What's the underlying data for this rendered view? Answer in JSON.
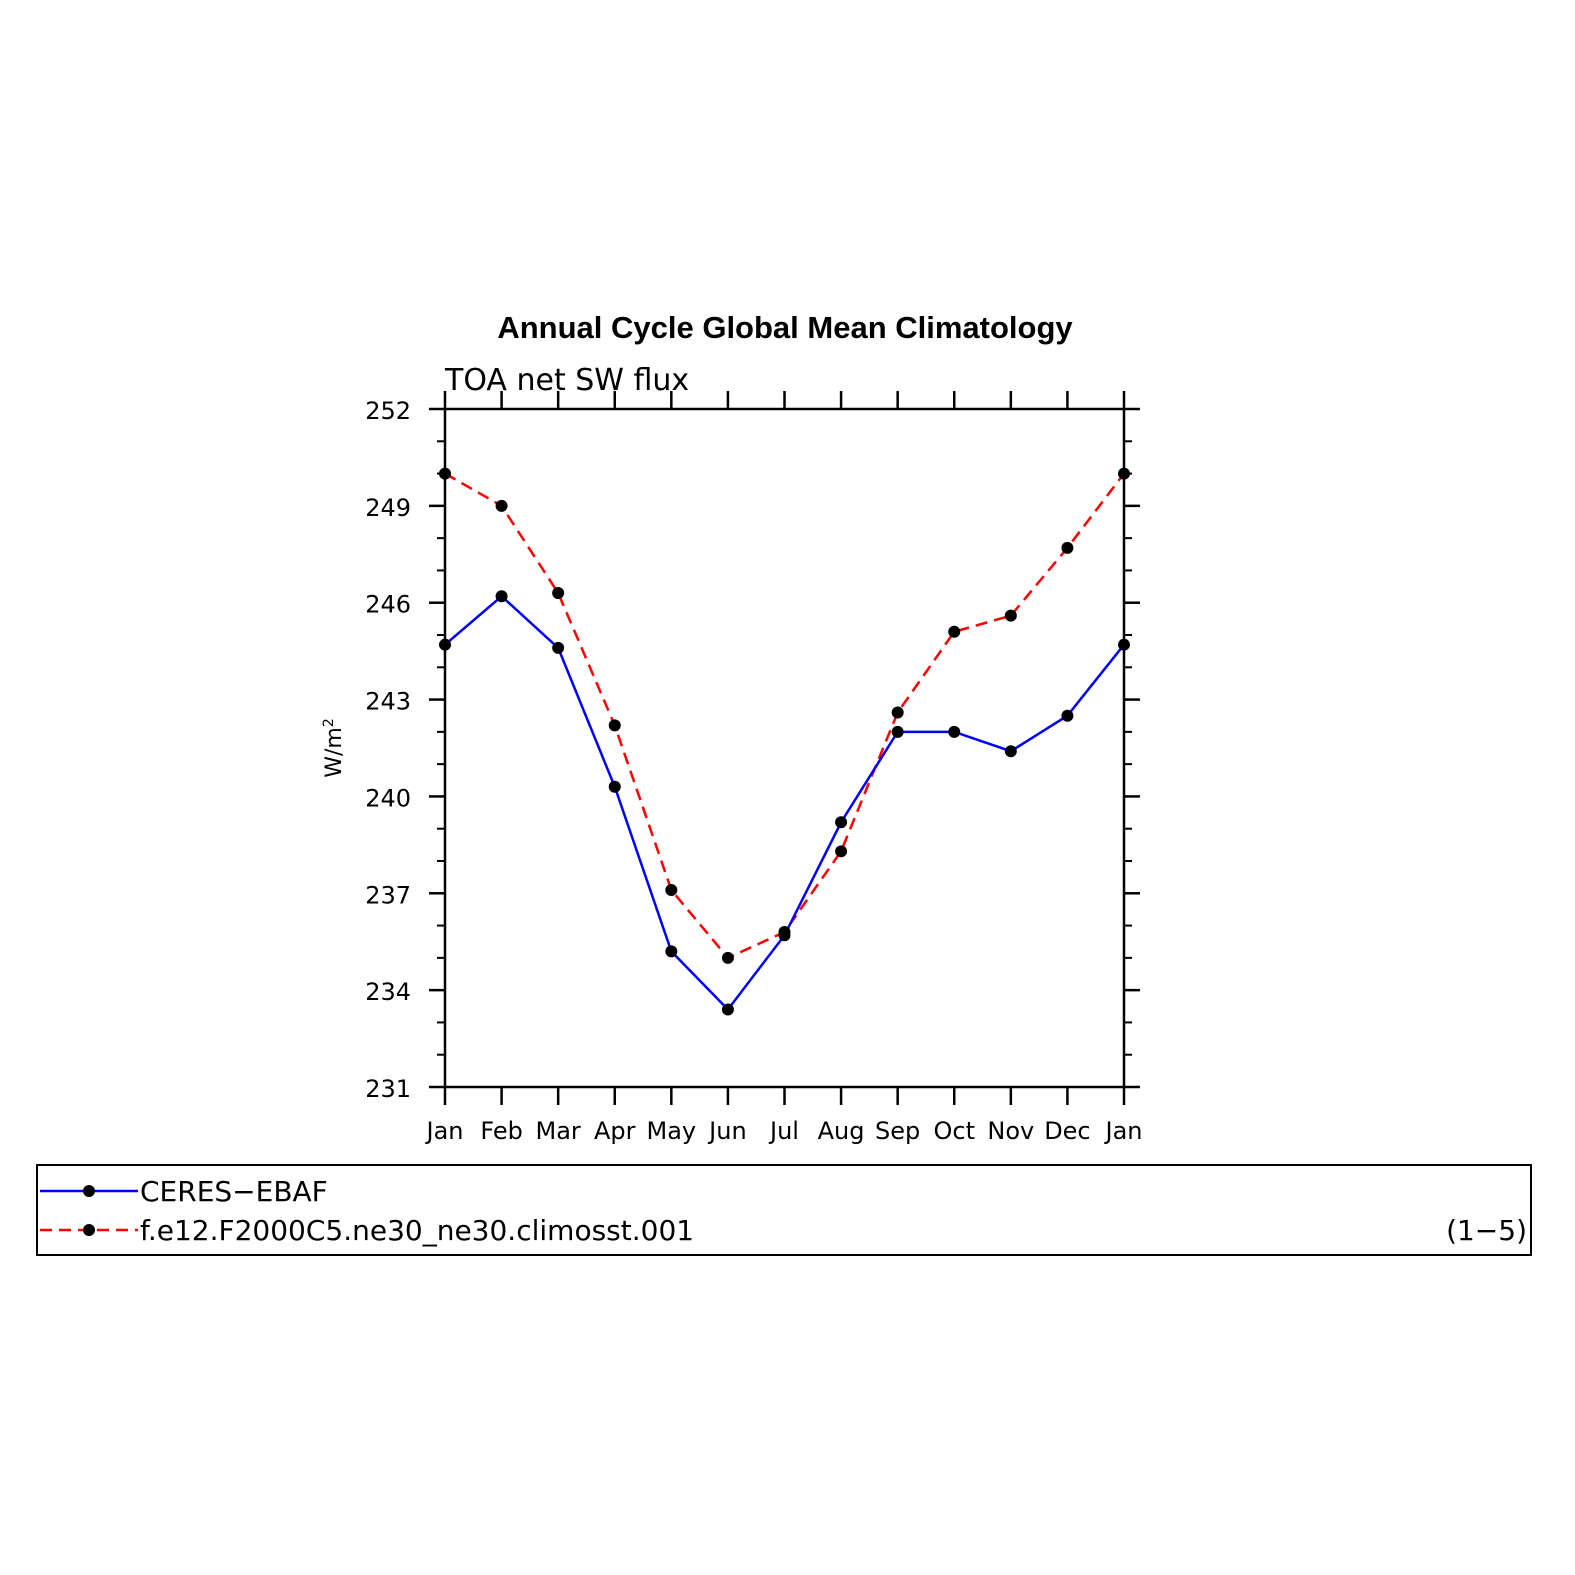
{
  "chart_data": {
    "type": "line",
    "title": "Annual Cycle Global Mean Climatology",
    "subtitle": "TOA net SW flux",
    "ylabel": "W/m",
    "ylabel_sup": "2",
    "categories": [
      "Jan",
      "Feb",
      "Mar",
      "Apr",
      "May",
      "Jun",
      "Jul",
      "Aug",
      "Sep",
      "Oct",
      "Nov",
      "Dec",
      "Jan"
    ],
    "ylim": [
      231,
      252
    ],
    "yticks": [
      231,
      234,
      237,
      240,
      243,
      246,
      249,
      252
    ],
    "grid": false,
    "legend_position": "bottom",
    "legend_note": "(1−5)",
    "series": [
      {
        "name": "CERES−EBAF",
        "color": "#0000ff",
        "dash": "solid",
        "values": [
          244.7,
          246.2,
          244.6,
          240.3,
          235.2,
          233.4,
          235.7,
          239.2,
          242.0,
          242.0,
          241.4,
          242.5,
          244.7
        ]
      },
      {
        "name": "f.e12.F2000C5.ne30_ne30.climosst.001",
        "color": "#ff0000",
        "dash": "dashed",
        "values": [
          250.0,
          249.0,
          246.3,
          242.2,
          237.1,
          235.0,
          235.8,
          238.3,
          242.6,
          245.1,
          245.6,
          247.7,
          250.0
        ]
      }
    ]
  }
}
